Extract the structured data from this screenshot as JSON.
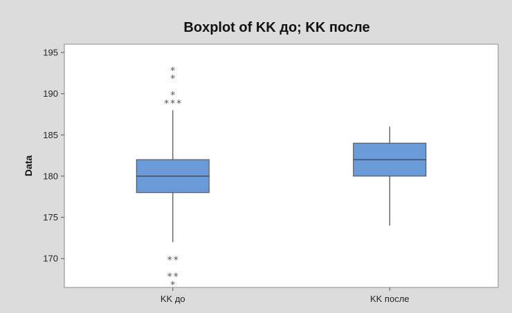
{
  "chart_data": {
    "type": "boxplot",
    "title": "Boxplot of KK до; KK после",
    "xlabel": "",
    "ylabel": "Data",
    "ylim": [
      166.5,
      196
    ],
    "yticks": [
      170,
      175,
      180,
      185,
      190,
      195
    ],
    "grid": false,
    "legend": "none",
    "box_color": "#6a9bd8",
    "background_color": "#dcdcdc",
    "categories": [
      "KK до",
      "KK после"
    ],
    "boxes": [
      {
        "category": "KK до",
        "whisker_low": 172,
        "q1": 178,
        "median": 180,
        "q3": 182,
        "whisker_high": 188,
        "outliers": [
          193,
          192,
          190,
          189,
          189,
          189,
          170,
          170,
          168,
          168,
          167
        ]
      },
      {
        "category": "KK после",
        "whisker_low": 174,
        "q1": 180,
        "median": 182,
        "q3": 184,
        "whisker_high": 186,
        "outliers": []
      }
    ]
  }
}
